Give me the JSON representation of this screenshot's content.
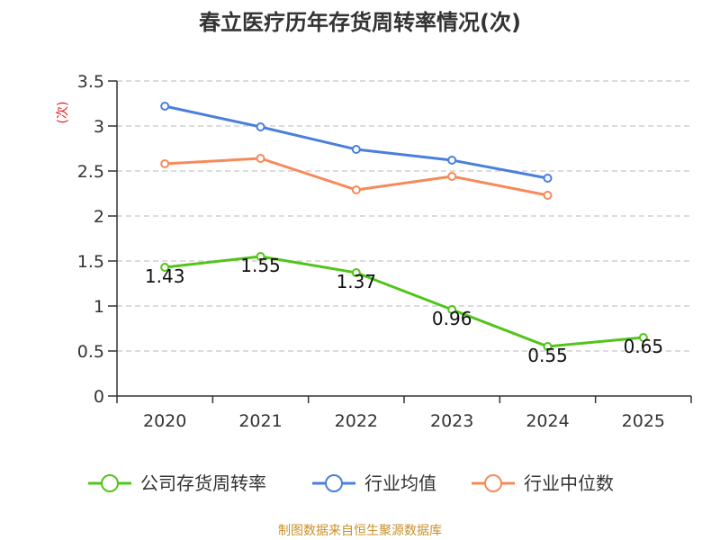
{
  "chart_data": {
    "type": "line",
    "title": "春立医疗历年存货周转率情况(次)",
    "ylabel": "(次)",
    "xlabel": "",
    "categories": [
      "2020",
      "2021",
      "2022",
      "2023",
      "2024",
      "2025"
    ],
    "ylim": [
      0,
      3.5
    ],
    "yticks": [
      "0",
      "0.5",
      "1",
      "1.5",
      "2",
      "2.5",
      "3",
      "3.5"
    ],
    "ytick_values": [
      0,
      0.5,
      1,
      1.5,
      2,
      2.5,
      3,
      3.5
    ],
    "grid": true,
    "legend_position": "bottom",
    "series": [
      {
        "name": "公司存货周转率",
        "color": "#52c41a",
        "values": [
          1.43,
          1.55,
          1.37,
          0.96,
          0.55,
          0.65
        ],
        "labels": [
          "1.43",
          "1.55",
          "1.37",
          "0.96",
          "0.55",
          "0.65"
        ]
      },
      {
        "name": "行业均值",
        "color": "#4a7fdc",
        "values": [
          3.22,
          2.99,
          2.74,
          2.62,
          2.42,
          null
        ]
      },
      {
        "name": "行业中位数",
        "color": "#f58a5a",
        "values": [
          2.58,
          2.64,
          2.29,
          2.44,
          2.23,
          null
        ]
      }
    ],
    "source": "制图数据来自恒生聚源数据库",
    "ylabel_color": "#e02020",
    "source_color": "#c8902a"
  }
}
